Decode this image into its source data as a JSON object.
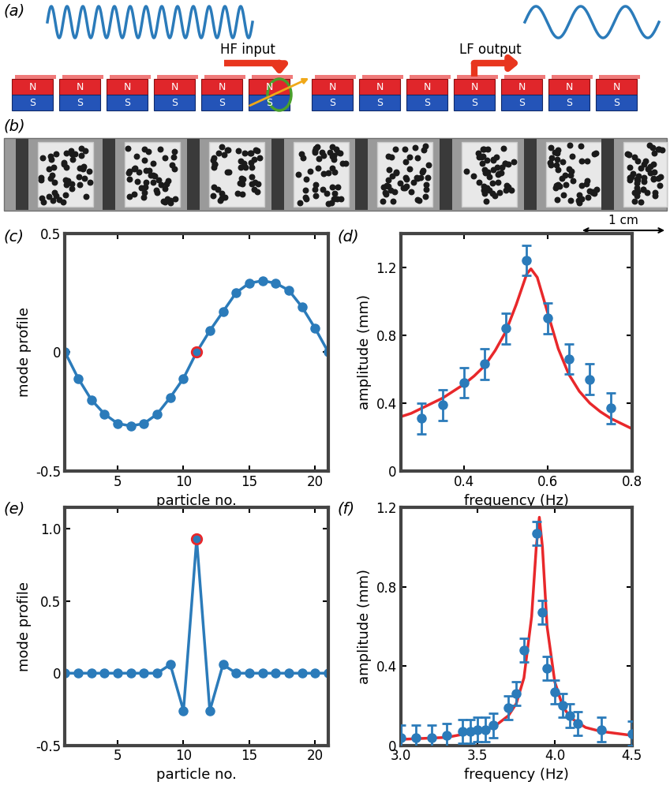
{
  "diagram": {
    "label": "(a)",
    "input": "HF input",
    "output": "LF output",
    "magnets": 13,
    "driven_magnet": 6,
    "output_magnet": 10,
    "north": "N",
    "south": "S"
  },
  "photo": {
    "label": "(b)",
    "scale_bar": "1 cm"
  },
  "chart_data": [
    {
      "label": "(c)",
      "type": "line",
      "x": [
        1,
        2,
        3,
        4,
        5,
        6,
        7,
        8,
        9,
        10,
        11,
        12,
        13,
        14,
        15,
        16,
        17,
        18,
        19,
        20,
        21
      ],
      "values": [
        0,
        -0.11,
        -0.2,
        -0.26,
        -0.3,
        -0.31,
        -0.3,
        -0.26,
        -0.19,
        -0.11,
        0,
        0.09,
        0.17,
        0.25,
        0.29,
        0.3,
        0.29,
        0.26,
        0.19,
        0.1,
        0
      ],
      "color": "#2b7bba",
      "marker": "o",
      "line_style": "solid",
      "highlight": {
        "x": 11,
        "color": "#e8282b"
      },
      "xlabel": "particle no.",
      "ylabel": "mode profile",
      "xlim": [
        1,
        21
      ],
      "xticks": [
        5,
        10,
        15,
        20
      ],
      "ylim": [
        -0.5,
        0.5
      ],
      "yticks": [
        -0.5,
        0,
        0.5
      ]
    },
    {
      "label": "(d)",
      "type": "scatter",
      "x": [
        0.3,
        0.35,
        0.4,
        0.45,
        0.5,
        0.55,
        0.6,
        0.65,
        0.7,
        0.75
      ],
      "values": [
        0.31,
        0.39,
        0.52,
        0.63,
        0.84,
        1.24,
        0.9,
        0.66,
        0.54,
        0.37
      ],
      "errors": [
        0.09,
        0.09,
        0.09,
        0.09,
        0.09,
        0.09,
        0.09,
        0.09,
        0.09,
        0.09
      ],
      "color": "#2b7bba",
      "marker": "o",
      "fit": {
        "x": [
          0.25,
          0.275,
          0.3,
          0.325,
          0.35,
          0.375,
          0.4,
          0.425,
          0.45,
          0.475,
          0.5,
          0.525,
          0.55,
          0.56,
          0.575,
          0.6,
          0.625,
          0.65,
          0.675,
          0.7,
          0.725,
          0.75,
          0.775,
          0.8
        ],
        "values": [
          0.32,
          0.34,
          0.37,
          0.4,
          0.43,
          0.47,
          0.51,
          0.56,
          0.62,
          0.71,
          0.82,
          0.98,
          1.16,
          1.19,
          1.14,
          0.93,
          0.72,
          0.57,
          0.47,
          0.4,
          0.35,
          0.31,
          0.28,
          0.25
        ],
        "color": "#e8282b"
      },
      "xlabel": "frequency (Hz)",
      "ylabel": "amplitude (mm)",
      "xlim": [
        0.25,
        0.8
      ],
      "xticks": [
        0.4,
        0.6,
        0.8
      ],
      "ylim": [
        0,
        1.4
      ],
      "yticks": [
        0,
        0.4,
        0.8,
        1.2
      ]
    },
    {
      "label": "(e)",
      "type": "line",
      "x": [
        1,
        2,
        3,
        4,
        5,
        6,
        7,
        8,
        9,
        10,
        11,
        12,
        13,
        14,
        15,
        16,
        17,
        18,
        19,
        20,
        21
      ],
      "values": [
        0,
        0,
        0,
        0,
        0,
        0,
        0,
        0,
        0.06,
        -0.26,
        0.93,
        -0.26,
        0.06,
        0,
        0,
        0,
        0,
        0,
        0,
        0,
        0
      ],
      "color": "#2b7bba",
      "marker": "o",
      "line_style": "solid",
      "highlight": {
        "x": 11,
        "color": "#e8282b"
      },
      "xlabel": "particle no.",
      "ylabel": "mode profile",
      "xlim": [
        1,
        21
      ],
      "xticks": [
        5,
        10,
        15,
        20
      ],
      "ylim": [
        -0.5,
        1.15
      ],
      "yticks": [
        -0.5,
        0,
        0.5,
        {
          "value": 1,
          "label": "1.0"
        }
      ]
    },
    {
      "label": "(f)",
      "type": "scatter",
      "x": [
        3.0,
        3.1,
        3.2,
        3.3,
        3.4,
        3.45,
        3.5,
        3.55,
        3.6,
        3.7,
        3.75,
        3.8,
        3.88,
        3.92,
        3.95,
        4.0,
        4.05,
        4.1,
        4.15,
        4.3,
        4.5
      ],
      "values": [
        0.04,
        0.04,
        0.04,
        0.05,
        0.07,
        0.07,
        0.08,
        0.08,
        0.1,
        0.19,
        0.26,
        0.48,
        1.07,
        0.67,
        0.39,
        0.27,
        0.2,
        0.15,
        0.11,
        0.08,
        0.06
      ],
      "errors": [
        0.06,
        0.06,
        0.06,
        0.06,
        0.06,
        0.06,
        0.06,
        0.06,
        0.06,
        0.06,
        0.06,
        0.06,
        0.06,
        0.06,
        0.06,
        0.06,
        0.06,
        0.06,
        0.06,
        0.06,
        0.06
      ],
      "color": "#2b7bba",
      "marker": "o",
      "fit": {
        "x": [
          3.0,
          3.3,
          3.5,
          3.6,
          3.7,
          3.75,
          3.8,
          3.85,
          3.88,
          3.9,
          3.92,
          3.95,
          4.0,
          4.05,
          4.1,
          4.2,
          4.3,
          4.5
        ],
        "values": [
          0.03,
          0.04,
          0.07,
          0.09,
          0.15,
          0.21,
          0.34,
          0.65,
          1.0,
          1.15,
          1.0,
          0.6,
          0.32,
          0.2,
          0.14,
          0.09,
          0.07,
          0.05
        ],
        "color": "#e8282b"
      },
      "xlabel": "frequency (Hz)",
      "ylabel": "amplitude (mm)",
      "xlim": [
        3,
        4.5
      ],
      "xticks": [
        {
          "value": 3,
          "label": "3.0"
        },
        3.5,
        {
          "value": 4,
          "label": "4.0"
        },
        4.5
      ],
      "ylim": [
        0,
        1.2
      ],
      "yticks": [
        0,
        0.4,
        0.8,
        1.2
      ]
    }
  ]
}
